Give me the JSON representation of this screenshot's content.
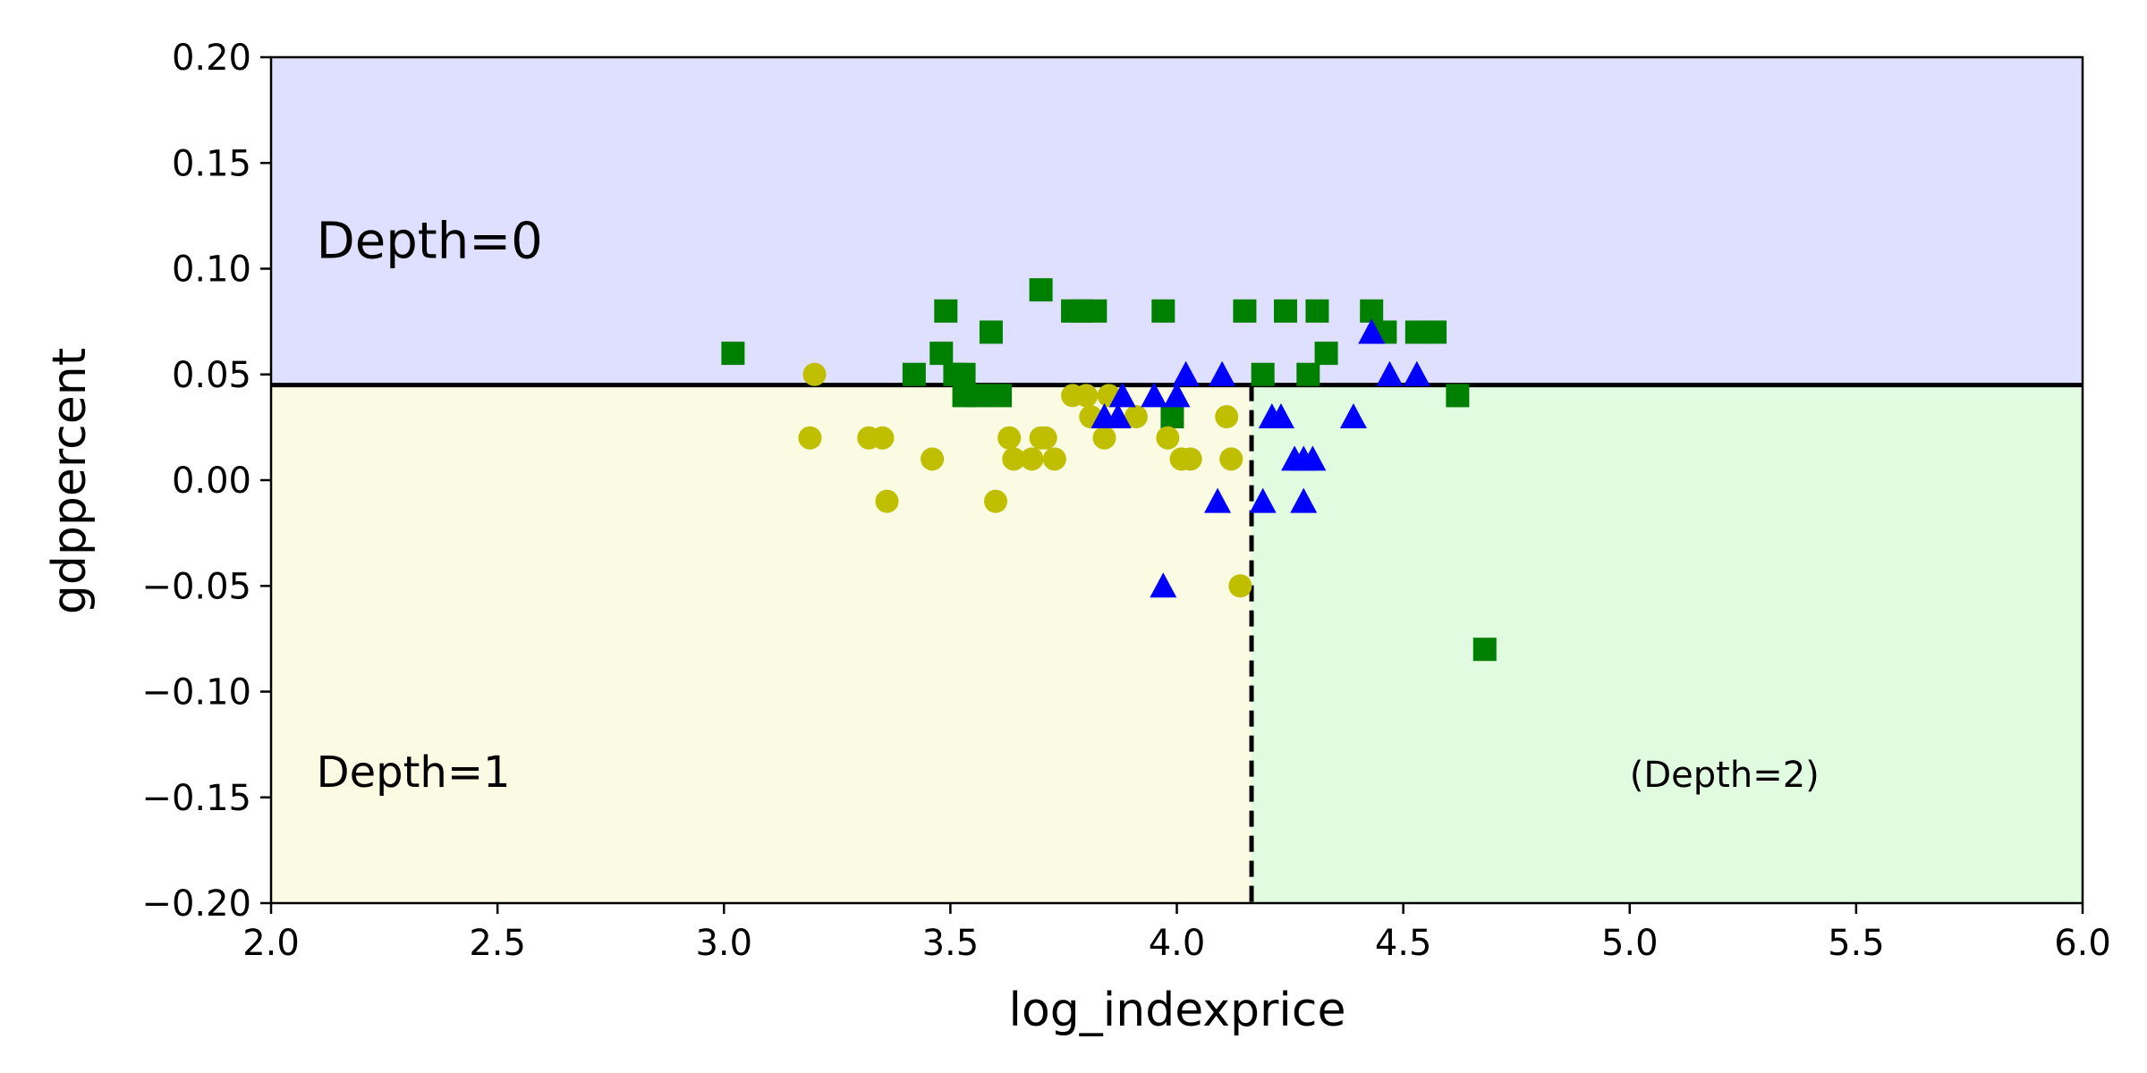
{
  "chart_data": {
    "type": "scatter",
    "title": "",
    "xlabel": "log_indexprice",
    "ylabel": "gdppercent",
    "xlim": [
      2.0,
      6.0
    ],
    "ylim": [
      -0.2,
      0.2
    ],
    "x_ticks": [
      "2.0",
      "2.5",
      "3.0",
      "3.5",
      "4.0",
      "4.5",
      "5.0",
      "5.5",
      "6.0"
    ],
    "y_ticks": [
      "0.20",
      "0.15",
      "0.10",
      "0.05",
      "0.00",
      "−0.05",
      "−0.10",
      "−0.15",
      "−0.20"
    ],
    "grid": false,
    "regions": [
      {
        "fill": "#dfe0ff",
        "x_range": [
          2.0,
          6.0
        ],
        "y_range": [
          0.045,
          0.2
        ]
      },
      {
        "fill": "#fbfbe4",
        "x_range": [
          2.0,
          4.165
        ],
        "y_range": [
          -0.2,
          0.045
        ]
      },
      {
        "fill": "#e0fbe0",
        "x_range": [
          4.165,
          6.0
        ],
        "y_range": [
          -0.2,
          0.045
        ]
      }
    ],
    "split_lines": [
      {
        "orientation": "horizontal",
        "value": 0.045,
        "style": "solid",
        "x_range": [
          2.0,
          6.0
        ]
      },
      {
        "orientation": "vertical",
        "value": 4.165,
        "style": "dashed",
        "y_range": [
          -0.2,
          0.045
        ]
      }
    ],
    "annotations": [
      {
        "text": "Depth=0",
        "x": 2.1,
        "y": 0.105,
        "size": "large"
      },
      {
        "text": "Depth=1",
        "x": 2.1,
        "y": -0.145,
        "size": "medium"
      },
      {
        "text": "(Depth=2)",
        "x": 5.0,
        "y": -0.145,
        "size": "small"
      }
    ],
    "series": [
      {
        "marker": "square",
        "color": "#008000",
        "points": [
          [
            3.02,
            0.06
          ],
          [
            3.42,
            0.05
          ],
          [
            3.48,
            0.06
          ],
          [
            3.49,
            0.08
          ],
          [
            3.51,
            0.05
          ],
          [
            3.53,
            0.05
          ],
          [
            3.53,
            0.04
          ],
          [
            3.56,
            0.04
          ],
          [
            3.59,
            0.07
          ],
          [
            3.61,
            0.04
          ],
          [
            3.7,
            0.09
          ],
          [
            3.77,
            0.08
          ],
          [
            3.79,
            0.08
          ],
          [
            3.82,
            0.08
          ],
          [
            3.97,
            0.08
          ],
          [
            3.99,
            0.03
          ],
          [
            4.15,
            0.08
          ],
          [
            4.19,
            0.05
          ],
          [
            4.24,
            0.08
          ],
          [
            4.29,
            0.05
          ],
          [
            4.31,
            0.08
          ],
          [
            4.33,
            0.06
          ],
          [
            4.43,
            0.08
          ],
          [
            4.46,
            0.07
          ],
          [
            4.53,
            0.07
          ],
          [
            4.57,
            0.07
          ],
          [
            4.62,
            0.04
          ],
          [
            4.68,
            -0.08
          ]
        ]
      },
      {
        "marker": "circle",
        "color": "#bfbf00",
        "points": [
          [
            3.19,
            0.02
          ],
          [
            3.2,
            0.05
          ],
          [
            3.32,
            0.02
          ],
          [
            3.35,
            0.02
          ],
          [
            3.36,
            -0.01
          ],
          [
            3.46,
            0.01
          ],
          [
            3.6,
            -0.01
          ],
          [
            3.63,
            0.02
          ],
          [
            3.64,
            0.01
          ],
          [
            3.68,
            0.01
          ],
          [
            3.7,
            0.02
          ],
          [
            3.71,
            0.02
          ],
          [
            3.73,
            0.01
          ],
          [
            3.77,
            0.04
          ],
          [
            3.8,
            0.04
          ],
          [
            3.81,
            0.03
          ],
          [
            3.84,
            0.02
          ],
          [
            3.85,
            0.04
          ],
          [
            3.91,
            0.03
          ],
          [
            3.98,
            0.02
          ],
          [
            4.01,
            0.01
          ],
          [
            4.03,
            0.01
          ],
          [
            4.11,
            0.03
          ],
          [
            4.12,
            0.01
          ],
          [
            4.14,
            -0.05
          ]
        ]
      },
      {
        "marker": "triangle",
        "color": "#0000ff",
        "points": [
          [
            3.84,
            0.03
          ],
          [
            3.87,
            0.03
          ],
          [
            3.88,
            0.04
          ],
          [
            3.95,
            0.04
          ],
          [
            3.97,
            -0.05
          ],
          [
            4.0,
            0.04
          ],
          [
            4.02,
            0.05
          ],
          [
            4.09,
            -0.01
          ],
          [
            4.1,
            0.05
          ],
          [
            4.19,
            -0.01
          ],
          [
            4.21,
            0.03
          ],
          [
            4.23,
            0.03
          ],
          [
            4.26,
            0.01
          ],
          [
            4.28,
            0.01
          ],
          [
            4.28,
            -0.01
          ],
          [
            4.3,
            0.01
          ],
          [
            4.39,
            0.03
          ],
          [
            4.43,
            0.07
          ],
          [
            4.47,
            0.05
          ],
          [
            4.53,
            0.05
          ]
        ]
      }
    ]
  }
}
